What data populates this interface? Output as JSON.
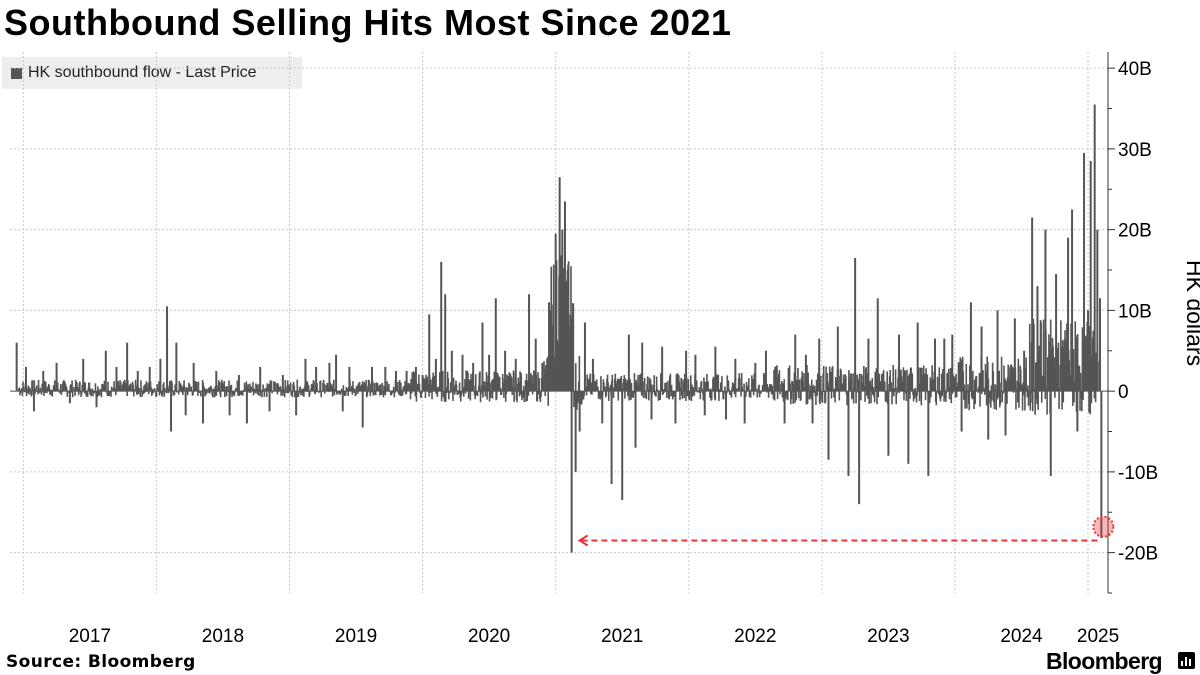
{
  "chart_data": {
    "type": "bar",
    "title": "Southbound Selling Hits Most Since 2021",
    "legend": "HK southbound flow - Last Price",
    "legend_position": "top-left",
    "ylabel": "HK dollars",
    "xlabel": "",
    "ylim": [
      -25,
      42
    ],
    "xlim": [
      2016.9,
      2025.15
    ],
    "y_ticks": [
      {
        "value": 40,
        "label": "40B"
      },
      {
        "value": 30,
        "label": "30B"
      },
      {
        "value": 20,
        "label": "20B"
      },
      {
        "value": 10,
        "label": "10B"
      },
      {
        "value": 0,
        "label": "0"
      },
      {
        "value": -10,
        "label": "-10B"
      },
      {
        "value": -20,
        "label": "-20B"
      }
    ],
    "x_ticks": [
      {
        "value": 2017,
        "label": "2017"
      },
      {
        "value": 2018,
        "label": "2018"
      },
      {
        "value": 2019,
        "label": "2019"
      },
      {
        "value": 2020,
        "label": "2020"
      },
      {
        "value": 2021,
        "label": "2021"
      },
      {
        "value": 2022,
        "label": "2022"
      },
      {
        "value": 2023,
        "label": "2023"
      },
      {
        "value": 2024,
        "label": "2024"
      },
      {
        "value": 2025,
        "label": "2025"
      }
    ],
    "grid": true,
    "series_color": "#555555",
    "annotation_color": "#e8353a",
    "series": [
      {
        "name": "HK southbound flow - Last Price",
        "points": [
          [
            2016.95,
            6.0
          ],
          [
            2017.02,
            3.0
          ],
          [
            2017.08,
            -2.5
          ],
          [
            2017.15,
            2.5
          ],
          [
            2017.25,
            3.5
          ],
          [
            2017.35,
            -1.5
          ],
          [
            2017.45,
            4.0
          ],
          [
            2017.55,
            -2.0
          ],
          [
            2017.62,
            5.0
          ],
          [
            2017.7,
            3.0
          ],
          [
            2017.78,
            6.0
          ],
          [
            2017.86,
            2.5
          ],
          [
            2017.95,
            3.0
          ],
          [
            2018.03,
            4.0
          ],
          [
            2018.08,
            10.5
          ],
          [
            2018.11,
            -5.0
          ],
          [
            2018.15,
            6.0
          ],
          [
            2018.22,
            -3.0
          ],
          [
            2018.28,
            3.5
          ],
          [
            2018.35,
            -4.0
          ],
          [
            2018.45,
            2.5
          ],
          [
            2018.55,
            -3.0
          ],
          [
            2018.62,
            2.0
          ],
          [
            2018.68,
            -4.0
          ],
          [
            2018.78,
            3.0
          ],
          [
            2018.85,
            -2.5
          ],
          [
            2018.95,
            2.0
          ],
          [
            2019.05,
            -3.0
          ],
          [
            2019.12,
            4.0
          ],
          [
            2019.2,
            3.0
          ],
          [
            2019.3,
            3.5
          ],
          [
            2019.35,
            4.5
          ],
          [
            2019.4,
            -2.5
          ],
          [
            2019.45,
            3.0
          ],
          [
            2019.55,
            -4.5
          ],
          [
            2019.62,
            3.0
          ],
          [
            2019.72,
            3.0
          ],
          [
            2019.8,
            2.5
          ],
          [
            2019.88,
            2.5
          ],
          [
            2019.95,
            3.0
          ],
          [
            2020.0,
            2.0
          ],
          [
            2020.05,
            9.5
          ],
          [
            2020.1,
            4.0
          ],
          [
            2020.14,
            16.0
          ],
          [
            2020.17,
            12.0
          ],
          [
            2020.22,
            5.0
          ],
          [
            2020.3,
            4.5
          ],
          [
            2020.38,
            3.5
          ],
          [
            2020.45,
            8.5
          ],
          [
            2020.5,
            4.5
          ],
          [
            2020.55,
            11.5
          ],
          [
            2020.62,
            5.0
          ],
          [
            2020.7,
            4.0
          ],
          [
            2020.8,
            12.0
          ],
          [
            2020.85,
            6.5
          ],
          [
            2020.9,
            3.5
          ],
          [
            2020.95,
            11.0
          ],
          [
            2021.0,
            19.5
          ],
          [
            2021.03,
            26.5
          ],
          [
            2021.05,
            20.0
          ],
          [
            2021.07,
            23.5
          ],
          [
            2021.09,
            15.0
          ],
          [
            2021.12,
            -20.0
          ],
          [
            2021.15,
            -10.0
          ],
          [
            2021.18,
            -5.0
          ],
          [
            2021.22,
            8.5
          ],
          [
            2021.28,
            4.0
          ],
          [
            2021.35,
            -4.0
          ],
          [
            2021.42,
            -11.5
          ],
          [
            2021.5,
            -13.5
          ],
          [
            2021.55,
            7.0
          ],
          [
            2021.6,
            -7.0
          ],
          [
            2021.65,
            6.0
          ],
          [
            2021.72,
            -3.5
          ],
          [
            2021.8,
            5.5
          ],
          [
            2021.9,
            -4.0
          ],
          [
            2021.98,
            5.0
          ],
          [
            2022.05,
            4.5
          ],
          [
            2022.12,
            -3.0
          ],
          [
            2022.2,
            5.5
          ],
          [
            2022.28,
            -3.5
          ],
          [
            2022.35,
            4.0
          ],
          [
            2022.42,
            -4.0
          ],
          [
            2022.5,
            3.5
          ],
          [
            2022.58,
            5.0
          ],
          [
            2022.65,
            3.0
          ],
          [
            2022.72,
            -4.0
          ],
          [
            2022.8,
            7.0
          ],
          [
            2022.88,
            4.5
          ],
          [
            2022.93,
            -4.0
          ],
          [
            2022.98,
            6.5
          ],
          [
            2023.05,
            -8.5
          ],
          [
            2023.12,
            8.0
          ],
          [
            2023.2,
            -10.5
          ],
          [
            2023.25,
            16.5
          ],
          [
            2023.28,
            -14.0
          ],
          [
            2023.35,
            6.5
          ],
          [
            2023.42,
            11.5
          ],
          [
            2023.5,
            -8.0
          ],
          [
            2023.58,
            7.0
          ],
          [
            2023.65,
            -9.0
          ],
          [
            2023.72,
            8.5
          ],
          [
            2023.8,
            -10.5
          ],
          [
            2023.85,
            6.5
          ],
          [
            2023.92,
            6.5
          ],
          [
            2023.98,
            7.0
          ],
          [
            2024.05,
            -5.0
          ],
          [
            2024.12,
            11.0
          ],
          [
            2024.2,
            8.0
          ],
          [
            2024.25,
            -6.0
          ],
          [
            2024.32,
            10.0
          ],
          [
            2024.38,
            -5.5
          ],
          [
            2024.45,
            9.0
          ],
          [
            2024.52,
            5.0
          ],
          [
            2024.58,
            21.5
          ],
          [
            2024.62,
            13.0
          ],
          [
            2024.68,
            20.0
          ],
          [
            2024.72,
            -10.5
          ],
          [
            2024.76,
            14.5
          ],
          [
            2024.8,
            5.5
          ],
          [
            2024.85,
            19.0
          ],
          [
            2024.88,
            22.5
          ],
          [
            2024.92,
            -5.0
          ],
          [
            2024.97,
            29.5
          ],
          [
            2025.0,
            10.0
          ],
          [
            2025.02,
            28.5
          ],
          [
            2025.05,
            35.5
          ],
          [
            2025.07,
            20.0
          ],
          [
            2025.09,
            11.5
          ],
          [
            2025.1,
            -18.2
          ]
        ]
      }
    ],
    "annotations": [
      {
        "type": "dashed-arrow",
        "from": [
          2025.1,
          -18.5
        ],
        "to": [
          2021.12,
          -18.5
        ]
      },
      {
        "type": "circle-marker",
        "at": [
          2025.1,
          -16.8
        ]
      }
    ]
  },
  "footer": {
    "source": "Source: Bloomberg",
    "brand": "Bloomberg"
  }
}
